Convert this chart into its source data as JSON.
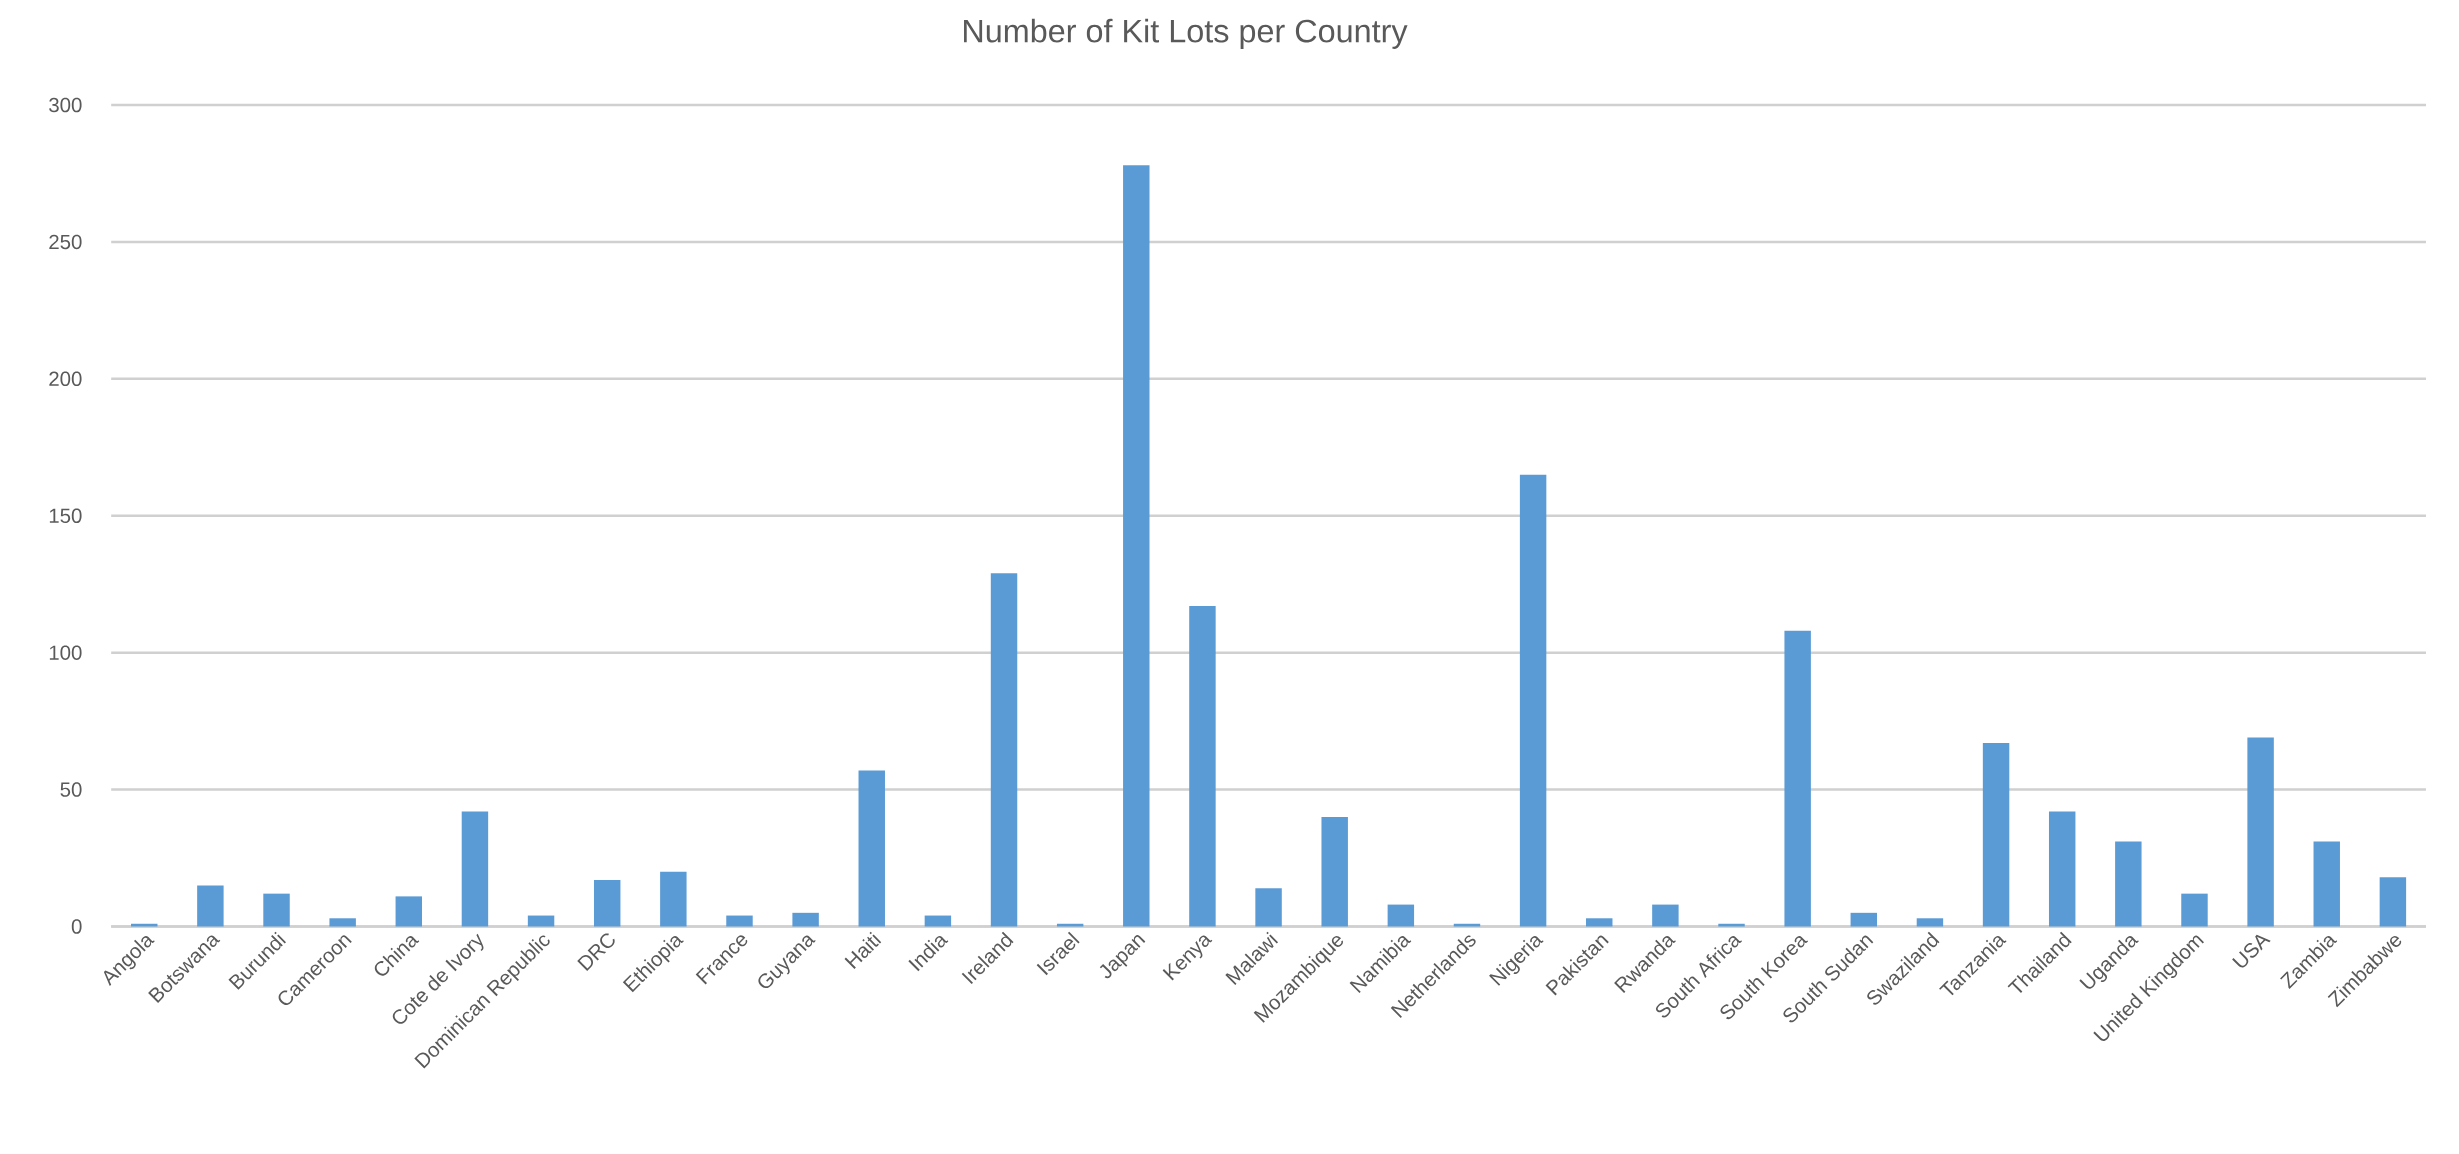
{
  "chart_data": {
    "type": "bar",
    "title": "Number of Kit Lots per Country",
    "categories": [
      "Angola",
      "Botswana",
      "Burundi",
      "Cameroon",
      "China",
      "Cote de Ivory",
      "Dominican Republic",
      "DRC",
      "Ethiopia",
      "France",
      "Guyana",
      "Haiti",
      "India",
      "Ireland",
      "Israel",
      "Japan",
      "Kenya",
      "Malawi",
      "Mozambique",
      "Namibia",
      "Netherlands",
      "Nigeria",
      "Pakistan",
      "Rwanda",
      "South Africa",
      "South Korea",
      "South Sudan",
      "Swaziland",
      "Tanzania",
      "Thailand",
      "Uganda",
      "United Kingdom",
      "USA",
      "Zambia",
      "Zimbabwe"
    ],
    "values": [
      1,
      15,
      12,
      3,
      11,
      42,
      4,
      17,
      20,
      4,
      5,
      57,
      4,
      129,
      1,
      278,
      117,
      14,
      40,
      8,
      1,
      165,
      3,
      8,
      1,
      108,
      5,
      3,
      67,
      42,
      31,
      12,
      69,
      31,
      18
    ],
    "color": "#5b9bd5",
    "ylim": [
      0,
      300
    ],
    "yticks": [
      0,
      50,
      100,
      150,
      200,
      250,
      300
    ],
    "grid": "y"
  }
}
